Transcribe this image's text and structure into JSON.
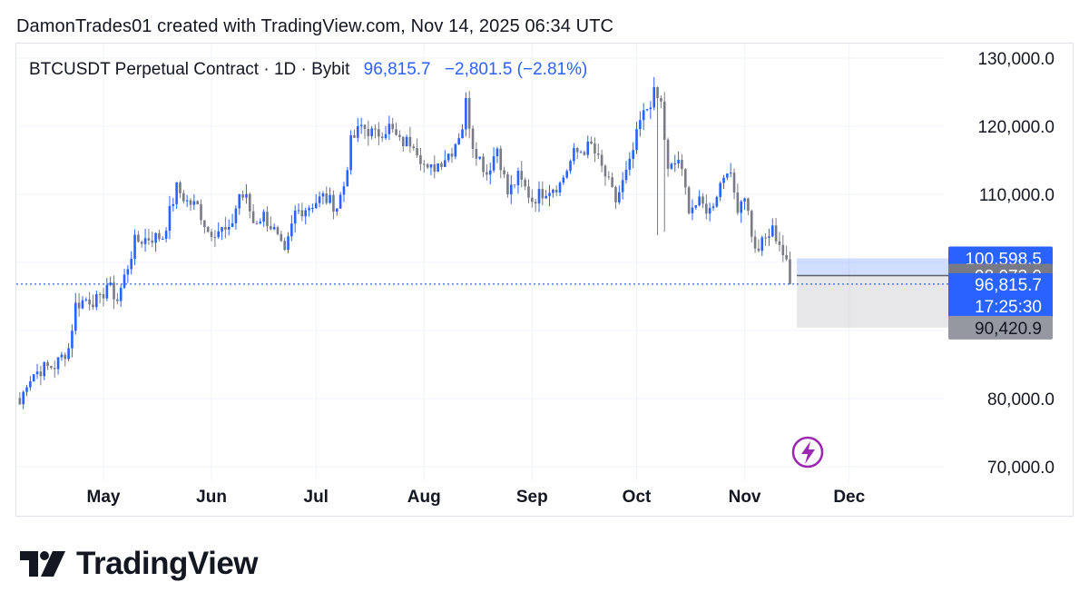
{
  "header": {
    "caption": "DamonTrades01 created with TradingView.com, Nov 14, 2025 06:34 UTC"
  },
  "symbol": {
    "name": "BTCUSDT Perpetual Contract · 1D · Bybit",
    "last_price": "96,815.7",
    "change": "−2,801.5 (−2.81%)"
  },
  "brand": {
    "name": "TradingView"
  },
  "colors": {
    "up": "#2962ff",
    "down": "#787b86",
    "grid": "#f0f3fa",
    "accent": "#2962ff",
    "bolt": "#9c27b0"
  },
  "chart_data": {
    "type": "candlestick",
    "timeframe": "1D",
    "ylim": [
      70000,
      130000
    ],
    "y_ticks": [
      {
        "value": 70000,
        "label": "70,000.0"
      },
      {
        "value": 80000,
        "label": "80,000.0"
      },
      {
        "value": 110000,
        "label": "110,000.0"
      },
      {
        "value": 120000,
        "label": "120,000.0"
      },
      {
        "value": 130000,
        "label": "130,000.0"
      }
    ],
    "x_ticks": [
      "May",
      "Jun",
      "Jul",
      "Aug",
      "Sep",
      "Oct",
      "Nov",
      "Dec"
    ],
    "close_series": [
      {
        "date": "2025-04-07",
        "close": 79200
      },
      {
        "date": "2025-04-09",
        "close": 82500
      },
      {
        "date": "2025-04-11",
        "close": 83700
      },
      {
        "date": "2025-04-14",
        "close": 84500
      },
      {
        "date": "2025-04-17",
        "close": 84800
      },
      {
        "date": "2025-04-21",
        "close": 87400
      },
      {
        "date": "2025-04-23",
        "close": 93700
      },
      {
        "date": "2025-04-26",
        "close": 94600
      },
      {
        "date": "2025-04-30",
        "close": 94300
      },
      {
        "date": "2025-05-02",
        "close": 96800
      },
      {
        "date": "2025-05-05",
        "close": 94500
      },
      {
        "date": "2025-05-08",
        "close": 99500
      },
      {
        "date": "2025-05-10",
        "close": 103000
      },
      {
        "date": "2025-05-14",
        "close": 103600
      },
      {
        "date": "2025-05-18",
        "close": 103800
      },
      {
        "date": "2025-05-22",
        "close": 110900
      },
      {
        "date": "2025-05-25",
        "close": 108900
      },
      {
        "date": "2025-05-28",
        "close": 108200
      },
      {
        "date": "2025-05-31",
        "close": 104600
      },
      {
        "date": "2025-06-04",
        "close": 104800
      },
      {
        "date": "2025-06-06",
        "close": 104200
      },
      {
        "date": "2025-06-09",
        "close": 110000
      },
      {
        "date": "2025-06-11",
        "close": 109300
      },
      {
        "date": "2025-06-13",
        "close": 105900
      },
      {
        "date": "2025-06-16",
        "close": 106900
      },
      {
        "date": "2025-06-19",
        "close": 104600
      },
      {
        "date": "2025-06-22",
        "close": 100900
      },
      {
        "date": "2025-06-25",
        "close": 107300
      },
      {
        "date": "2025-06-29",
        "close": 108300
      },
      {
        "date": "2025-07-03",
        "close": 109600
      },
      {
        "date": "2025-07-07",
        "close": 108200
      },
      {
        "date": "2025-07-09",
        "close": 111300
      },
      {
        "date": "2025-07-11",
        "close": 117600
      },
      {
        "date": "2025-07-14",
        "close": 120000
      },
      {
        "date": "2025-07-18",
        "close": 118700
      },
      {
        "date": "2025-07-22",
        "close": 119900
      },
      {
        "date": "2025-07-25",
        "close": 117600
      },
      {
        "date": "2025-07-29",
        "close": 117800
      },
      {
        "date": "2025-08-02",
        "close": 113200
      },
      {
        "date": "2025-08-06",
        "close": 115000
      },
      {
        "date": "2025-08-09",
        "close": 116500
      },
      {
        "date": "2025-08-12",
        "close": 120000
      },
      {
        "date": "2025-08-13",
        "close": 123500
      },
      {
        "date": "2025-08-15",
        "close": 117400
      },
      {
        "date": "2025-08-19",
        "close": 113100
      },
      {
        "date": "2025-08-22",
        "close": 116900
      },
      {
        "date": "2025-08-25",
        "close": 110100
      },
      {
        "date": "2025-08-28",
        "close": 112500
      },
      {
        "date": "2025-09-01",
        "close": 109200
      },
      {
        "date": "2025-09-05",
        "close": 110700
      },
      {
        "date": "2025-09-09",
        "close": 111500
      },
      {
        "date": "2025-09-13",
        "close": 115900
      },
      {
        "date": "2025-09-18",
        "close": 117100
      },
      {
        "date": "2025-09-22",
        "close": 112700
      },
      {
        "date": "2025-09-25",
        "close": 109000
      },
      {
        "date": "2025-09-29",
        "close": 114300
      },
      {
        "date": "2025-10-02",
        "close": 120600
      },
      {
        "date": "2025-10-06",
        "close": 124700
      },
      {
        "date": "2025-10-08",
        "close": 123300
      },
      {
        "date": "2025-10-10",
        "close": 113200
      },
      {
        "date": "2025-10-13",
        "close": 115200
      },
      {
        "date": "2025-10-16",
        "close": 108200
      },
      {
        "date": "2025-10-19",
        "close": 108600
      },
      {
        "date": "2025-10-22",
        "close": 107600
      },
      {
        "date": "2025-10-25",
        "close": 111600
      },
      {
        "date": "2025-10-27",
        "close": 114100
      },
      {
        "date": "2025-10-30",
        "close": 108300
      },
      {
        "date": "2025-11-01",
        "close": 110100
      },
      {
        "date": "2025-11-04",
        "close": 101500
      },
      {
        "date": "2025-11-07",
        "close": 103400
      },
      {
        "date": "2025-11-09",
        "close": 104700
      },
      {
        "date": "2025-11-11",
        "close": 102900
      },
      {
        "date": "2025-11-13",
        "close": 99600
      },
      {
        "date": "2025-11-14",
        "close": 96815.7
      }
    ],
    "price_tags": [
      {
        "value": 100598.5,
        "label": "100,598.5",
        "style": "blue"
      },
      {
        "value": 98073.0,
        "label": "98,073.0",
        "style": "gray"
      },
      {
        "value": 96815.7,
        "label": "96,815.7",
        "sub": "17:25:30",
        "style": "blue"
      },
      {
        "value": 90420.9,
        "label": "90,420.9",
        "style": "lightgray"
      }
    ],
    "last_price": 96815.7,
    "position_tool": {
      "entry": 98073.0,
      "target": 100598.5,
      "stop": 90420.9
    }
  }
}
